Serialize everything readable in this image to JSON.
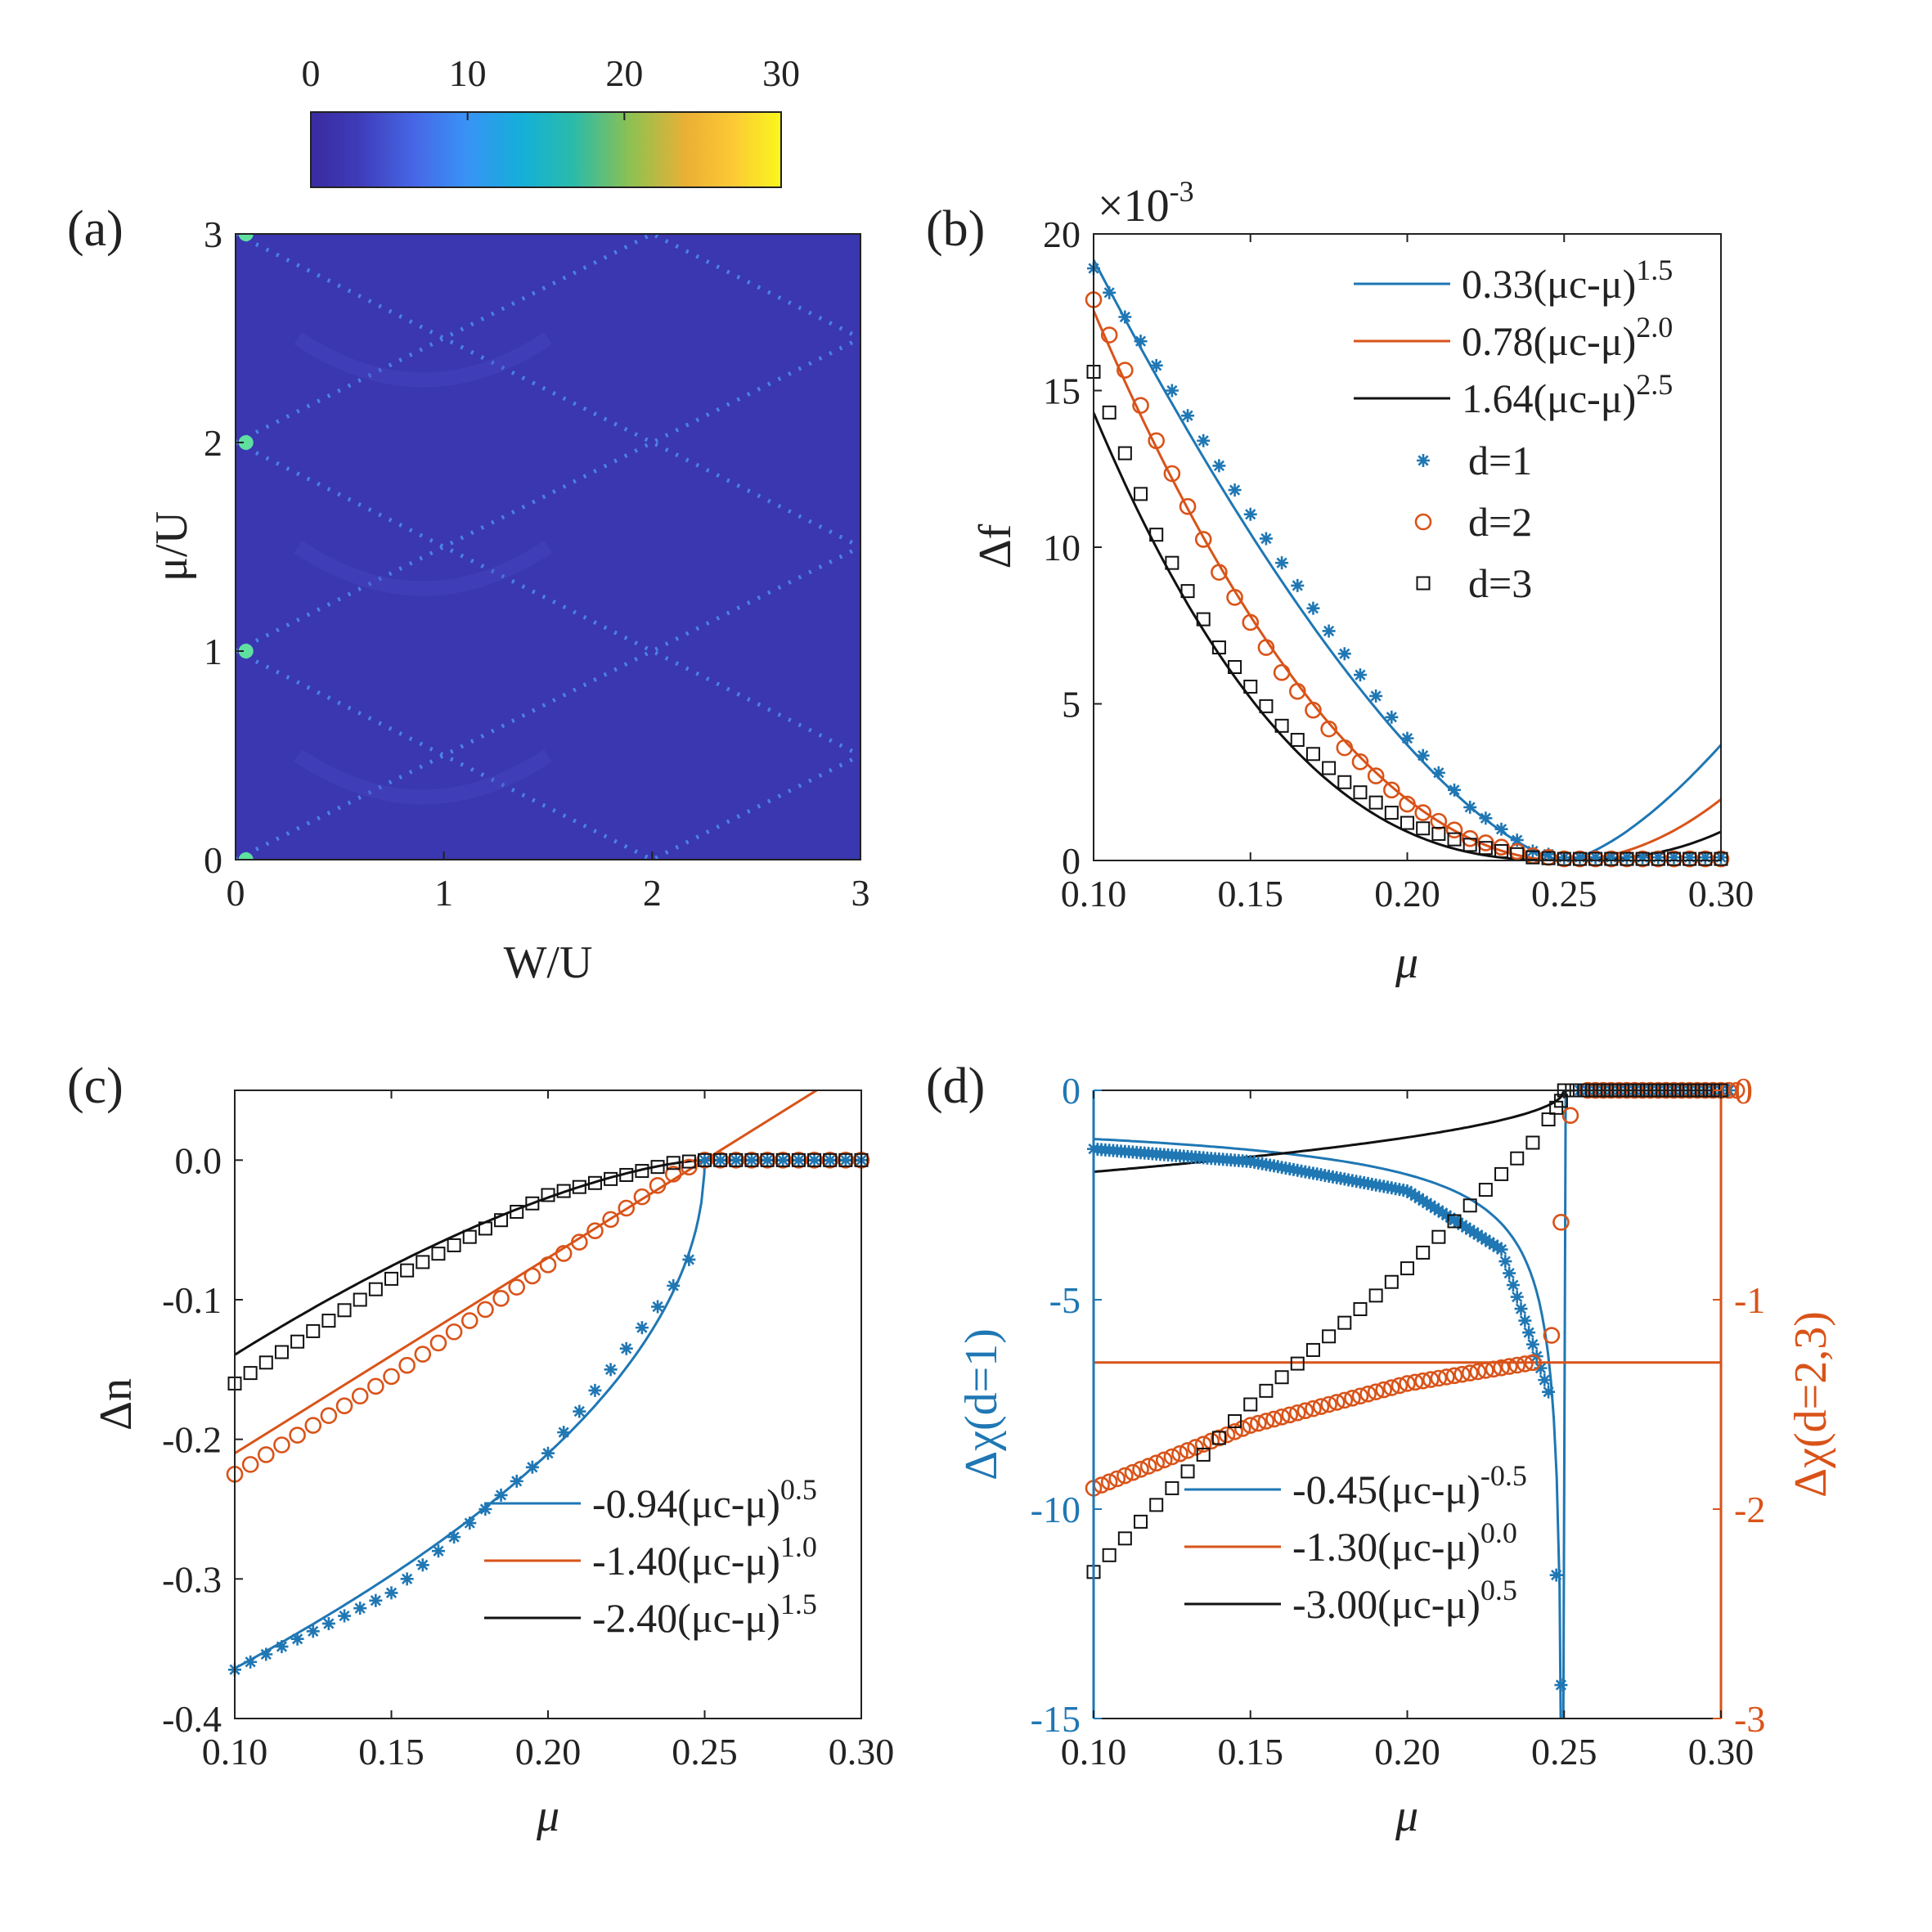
{
  "colors": {
    "blue": "#1f77b4",
    "orange": "#d95319",
    "black": "#111111",
    "heat_bg": "#3a37b0",
    "heat_ridge": "#4f8ff0"
  },
  "chart_data": [
    {
      "panel": "(a)",
      "type": "heatmap",
      "xlabel": "W/U",
      "ylabel": "μ/U",
      "xlim": [
        0,
        3
      ],
      "ylim": [
        0,
        3
      ],
      "xticks": [
        "0",
        "1",
        "2",
        "3"
      ],
      "yticks": [
        "0",
        "1",
        "2",
        "3"
      ],
      "colorbar": {
        "ticks": [
          "0",
          "10",
          "20",
          "30"
        ],
        "range": [
          0,
          30
        ]
      }
    },
    {
      "panel": "(b)",
      "type": "scatter",
      "xlabel": "μ",
      "ylabel": "Δf",
      "multiplier": "×10",
      "multiplier_exp": "-3",
      "xlim": [
        0.1,
        0.3
      ],
      "ylim": [
        0,
        20
      ],
      "xticks": [
        "0.10",
        "0.15",
        "0.20",
        "0.25",
        "0.30"
      ],
      "yticks": [
        "0",
        "5",
        "10",
        "15",
        "20"
      ],
      "mu_c": 0.25,
      "fits": [
        {
          "label": "0.33(μc-μ)",
          "exponent": "1.5",
          "coef": 0.33,
          "power": 1.5,
          "color": "blue"
        },
        {
          "label": "0.78(μc-μ)",
          "exponent": "2.0",
          "coef": 0.78,
          "power": 2.0,
          "color": "orange"
        },
        {
          "label": "1.64(μc-μ)",
          "exponent": "2.5",
          "coef": 1.64,
          "power": 2.5,
          "color": "black"
        }
      ],
      "series": [
        {
          "name": "d=1",
          "marker": "asterisk",
          "color": "blue",
          "points": [
            [
              0.1,
              18.9
            ],
            [
              0.12,
              15.8
            ],
            [
              0.14,
              12.6
            ],
            [
              0.16,
              9.5
            ],
            [
              0.18,
              6.6
            ],
            [
              0.2,
              3.9
            ],
            [
              0.22,
              1.7
            ],
            [
              0.24,
              0.3
            ],
            [
              0.25,
              0.1
            ],
            [
              0.3,
              0.1
            ]
          ]
        },
        {
          "name": "d=2",
          "marker": "circle",
          "color": "orange",
          "points": [
            [
              0.1,
              17.9
            ],
            [
              0.12,
              13.4
            ],
            [
              0.14,
              9.2
            ],
            [
              0.16,
              6.0
            ],
            [
              0.18,
              3.6
            ],
            [
              0.2,
              1.8
            ],
            [
              0.22,
              0.7
            ],
            [
              0.24,
              0.15
            ],
            [
              0.25,
              0.05
            ],
            [
              0.3,
              0.05
            ]
          ]
        },
        {
          "name": "d=3",
          "marker": "square",
          "color": "black",
          "points": [
            [
              0.1,
              15.6
            ],
            [
              0.12,
              10.4
            ],
            [
              0.14,
              6.8
            ],
            [
              0.16,
              4.3
            ],
            [
              0.18,
              2.5
            ],
            [
              0.2,
              1.2
            ],
            [
              0.22,
              0.5
            ],
            [
              0.24,
              0.1
            ],
            [
              0.25,
              0.05
            ],
            [
              0.3,
              0.05
            ]
          ]
        }
      ]
    },
    {
      "panel": "(c)",
      "type": "scatter",
      "xlabel": "μ",
      "ylabel": "Δn",
      "xlim": [
        0.1,
        0.3
      ],
      "ylim": [
        -0.4,
        0.05
      ],
      "xticks": [
        "0.10",
        "0.15",
        "0.20",
        "0.25",
        "0.30"
      ],
      "yticks": [
        "0.0",
        "-0.1",
        "-0.2",
        "-0.3",
        "-0.4"
      ],
      "mu_c": 0.25,
      "fits": [
        {
          "label": "-0.94(μc-μ)",
          "exponent": "0.5",
          "coef": -0.94,
          "power": 0.5,
          "color": "blue"
        },
        {
          "label": "-1.40(μc-μ)",
          "exponent": "1.0",
          "coef": -1.4,
          "power": 1.0,
          "color": "orange"
        },
        {
          "label": "-2.40(μc-μ)",
          "exponent": "1.5",
          "coef": -2.4,
          "power": 1.5,
          "color": "black"
        }
      ],
      "series": [
        {
          "name": "d=1",
          "marker": "asterisk",
          "color": "blue",
          "points": [
            [
              0.1,
              -0.365
            ],
            [
              0.15,
              -0.31
            ],
            [
              0.2,
              -0.21
            ],
            [
              0.24,
              -0.09
            ],
            [
              0.248,
              -0.06
            ],
            [
              0.25,
              0.0
            ],
            [
              0.3,
              0.0
            ]
          ]
        },
        {
          "name": "d=2",
          "marker": "circle",
          "color": "orange",
          "points": [
            [
              0.1,
              -0.225
            ],
            [
              0.15,
              -0.155
            ],
            [
              0.2,
              -0.075
            ],
            [
              0.24,
              -0.01
            ],
            [
              0.25,
              0.0
            ],
            [
              0.3,
              0.0
            ]
          ]
        },
        {
          "name": "d=3",
          "marker": "square",
          "color": "black",
          "points": [
            [
              0.1,
              -0.16
            ],
            [
              0.15,
              -0.085
            ],
            [
              0.2,
              -0.025
            ],
            [
              0.24,
              -0.002
            ],
            [
              0.25,
              0.0
            ],
            [
              0.3,
              0.0
            ]
          ]
        }
      ]
    },
    {
      "panel": "(d)",
      "type": "scatter",
      "xlabel": "μ",
      "ylabel_left": "Δχ(d=1)",
      "ylabel_right": "Δχ(d=2,3)",
      "xlim": [
        0.1,
        0.3
      ],
      "ylim_left": [
        -15,
        0
      ],
      "ylim_right": [
        -3,
        0
      ],
      "xticks": [
        "0.10",
        "0.15",
        "0.20",
        "0.25",
        "0.30"
      ],
      "yticks_left": [
        "0",
        "-5",
        "-10",
        "-15"
      ],
      "yticks_right": [
        "0",
        "-1",
        "-2",
        "-3"
      ],
      "mu_c": 0.25,
      "fits": [
        {
          "label": "-0.45(μc-μ)",
          "exponent": "-0.5",
          "coef": -0.45,
          "power": -0.5,
          "color": "blue",
          "axis": "left"
        },
        {
          "label": "-1.30(μc-μ)",
          "exponent": "0.0",
          "coef": -1.3,
          "power": 0.0,
          "color": "orange",
          "axis": "right"
        },
        {
          "label": "-3.00(μc-μ)",
          "exponent": "0.5",
          "coef": -3.0,
          "power": 0.5,
          "color": "black",
          "axis": "right"
        }
      ],
      "series": [
        {
          "name": "d=1",
          "marker": "asterisk",
          "color": "blue",
          "axis": "left",
          "points": [
            [
              0.1,
              -1.4
            ],
            [
              0.15,
              -1.7
            ],
            [
              0.2,
              -2.4
            ],
            [
              0.23,
              -3.8
            ],
            [
              0.245,
              -7.2
            ],
            [
              0.249,
              -14.2
            ],
            [
              0.25,
              0.0
            ],
            [
              0.3,
              0.0
            ]
          ]
        },
        {
          "name": "d=2",
          "marker": "circle",
          "color": "orange",
          "axis": "right",
          "points": [
            [
              0.1,
              -1.9
            ],
            [
              0.15,
              -1.6
            ],
            [
              0.2,
              -1.4
            ],
            [
              0.24,
              -1.3
            ],
            [
              0.246,
              -1.17
            ],
            [
              0.249,
              -0.63
            ],
            [
              0.252,
              -0.12
            ],
            [
              0.255,
              0.0
            ],
            [
              0.3,
              0.0
            ]
          ]
        },
        {
          "name": "d=3",
          "marker": "square",
          "color": "black",
          "axis": "right",
          "points": [
            [
              0.1,
              -2.3
            ],
            [
              0.15,
              -1.5
            ],
            [
              0.2,
              -0.85
            ],
            [
              0.24,
              -0.25
            ],
            [
              0.249,
              -0.05
            ],
            [
              0.25,
              0.0
            ],
            [
              0.3,
              0.0
            ]
          ]
        }
      ]
    }
  ]
}
